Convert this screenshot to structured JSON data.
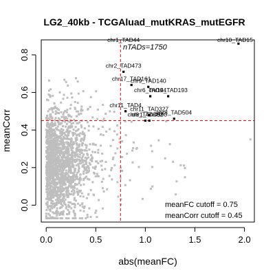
{
  "chart_data": {
    "type": "scatter",
    "title": "LG2_40kb - TCGAluad_mutKRAS_mutEGFR",
    "xlabel": "abs(meanFC)",
    "ylabel": "meanCorr",
    "xlim": [
      -0.05,
      2.1
    ],
    "ylim": [
      -0.09,
      0.88
    ],
    "x_ticks": [
      "0.0",
      "0.5",
      "1.0",
      "1.5",
      "2.0"
    ],
    "y_ticks": [
      "0.0",
      "0.2",
      "0.4",
      "0.6",
      "0.8"
    ],
    "grid": false,
    "ntads_label": "nTADs=1750",
    "cutoffs": {
      "meanFC": 0.75,
      "meanCorr": 0.45,
      "meanFC_label": "meanFC cutoff = 0.75",
      "meanCorr_label": "meanCorr cutoff = 0.45"
    },
    "colors": {
      "background_points": "#bebebe",
      "highlight_points": "#000000",
      "cutoff_lines": "#ff0000"
    },
    "highlighted": [
      {
        "label": "chr10_TAD15",
        "x": 1.94,
        "y": 0.86
      },
      {
        "label": "chr2_TAD473",
        "x": 0.78,
        "y": 0.71
      },
      {
        "label": "chr17_TAD161",
        "x": 0.86,
        "y": 0.64
      },
      {
        "label": "chr9_TAD140",
        "x": 1.03,
        "y": 0.63
      },
      {
        "label": "chr6_TAD94",
        "x": 1.05,
        "y": 0.58
      },
      {
        "label": "chr14_TAD193",
        "x": 1.23,
        "y": 0.58
      },
      {
        "label": "chr11_TAD4",
        "x": 0.8,
        "y": 0.5
      },
      {
        "label": "chr11_TAD327",
        "x": 1.04,
        "y": 0.48
      },
      {
        "label": "chr8_TAD504",
        "x": 1.29,
        "y": 0.46
      },
      {
        "label": "chr1_TAD590",
        "x": 1.04,
        "y": 0.45
      },
      {
        "label": "chr8_TAD482",
        "x": 1.0,
        "y": 0.45
      },
      {
        "label": "chr1_TAD44",
        "x": 0.78,
        "y": 0.91
      }
    ],
    "background_n": 1750
  }
}
